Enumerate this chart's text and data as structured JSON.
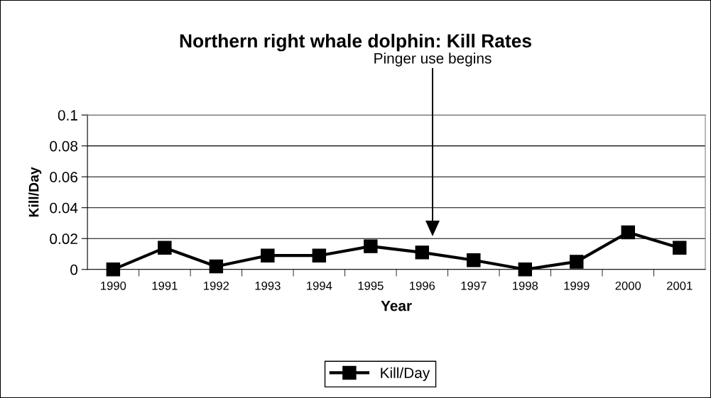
{
  "chart_data": {
    "type": "line",
    "title": "Northern right whale dolphin: Kill Rates",
    "xlabel": "Year",
    "ylabel": "Kill/Day",
    "categories": [
      "1990",
      "1991",
      "1992",
      "1993",
      "1994",
      "1995",
      "1996",
      "1997",
      "1998",
      "1999",
      "2000",
      "2001"
    ],
    "series": [
      {
        "name": "Kill/Day",
        "color": "#000000",
        "values": [
          0,
          0.014,
          0.002,
          0.009,
          0.009,
          0.015,
          0.011,
          0.006,
          0,
          0.005,
          0.024,
          0.014
        ]
      }
    ],
    "ylim": [
      0,
      0.1
    ],
    "yticks": [
      0,
      0.02,
      0.04,
      0.06,
      0.08,
      0.1
    ],
    "annotations": [
      "Pinger use begins"
    ],
    "grid": "y",
    "legend": "bottom",
    "marker": "square",
    "line_style": "solid"
  }
}
